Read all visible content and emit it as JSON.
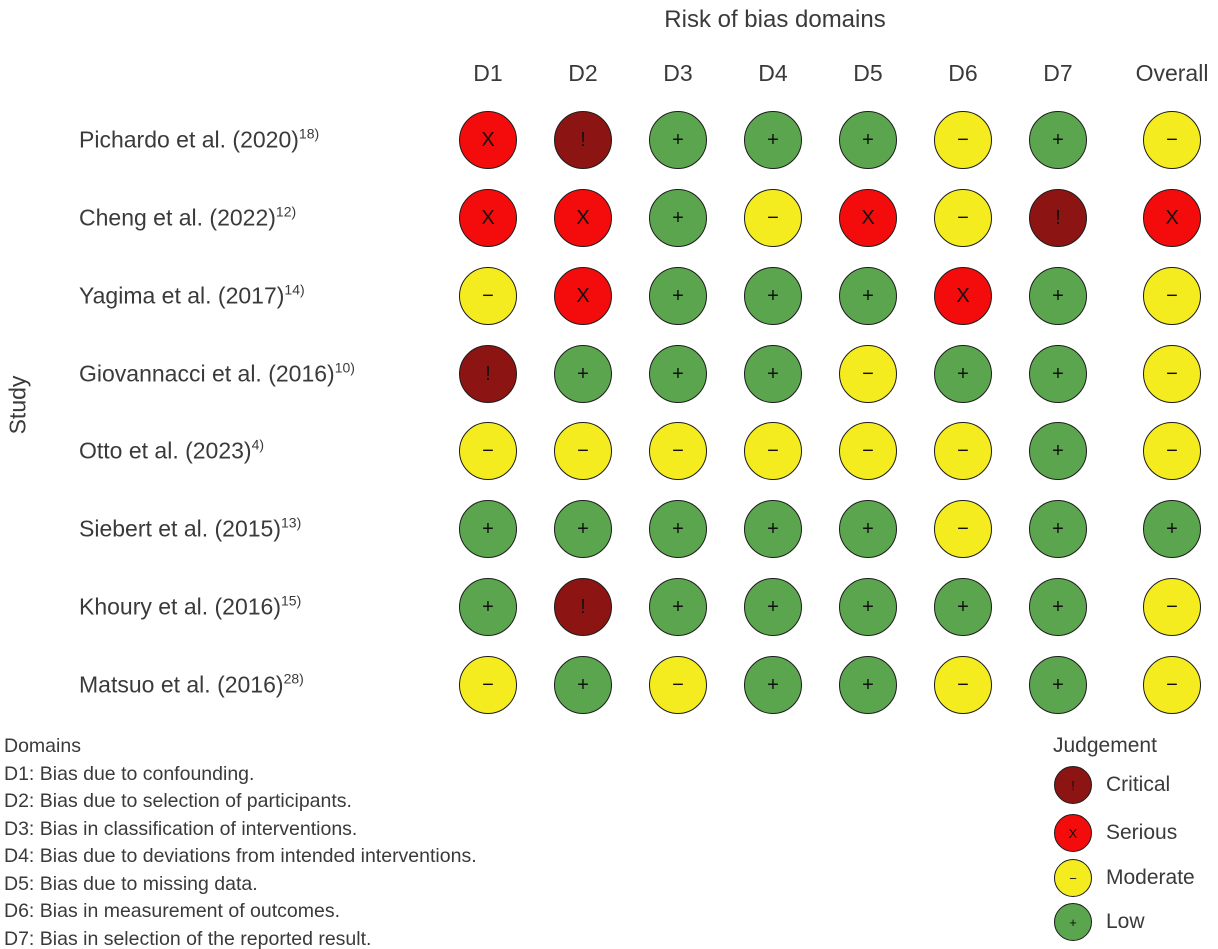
{
  "title": "Risk of bias domains",
  "y_axis_label": "Study",
  "columns": [
    "D1",
    "D2",
    "D3",
    "D4",
    "D5",
    "D6",
    "D7",
    "Overall"
  ],
  "studies": [
    {
      "label": "Pichardo et al. (2020)",
      "ref": "18)",
      "judgements": [
        "serious",
        "critical",
        "low",
        "low",
        "low",
        "moderate",
        "low",
        "moderate"
      ]
    },
    {
      "label": "Cheng et al. (2022)",
      "ref": "12)",
      "judgements": [
        "serious",
        "serious",
        "low",
        "moderate",
        "serious",
        "moderate",
        "critical",
        "serious"
      ]
    },
    {
      "label": "Yagima et al. (2017)",
      "ref": "14)",
      "judgements": [
        "moderate",
        "serious",
        "low",
        "low",
        "low",
        "serious",
        "low",
        "moderate"
      ]
    },
    {
      "label": "Giovannacci et al. (2016)",
      "ref": "10)",
      "judgements": [
        "critical",
        "low",
        "low",
        "low",
        "moderate",
        "low",
        "low",
        "moderate"
      ]
    },
    {
      "label": "Otto et al. (2023)",
      "ref": "4)",
      "judgements": [
        "moderate",
        "moderate",
        "moderate",
        "moderate",
        "moderate",
        "moderate",
        "low",
        "moderate"
      ]
    },
    {
      "label": "Siebert et al. (2015)",
      "ref": "13)",
      "judgements": [
        "low",
        "low",
        "low",
        "low",
        "low",
        "moderate",
        "low",
        "low"
      ]
    },
    {
      "label": "Khoury et al. (2016)",
      "ref": "15)",
      "judgements": [
        "low",
        "critical",
        "low",
        "low",
        "low",
        "low",
        "low",
        "moderate"
      ]
    },
    {
      "label": "Matsuo et al. (2016)",
      "ref": "28)",
      "judgements": [
        "moderate",
        "low",
        "moderate",
        "low",
        "low",
        "moderate",
        "low",
        "moderate"
      ]
    }
  ],
  "judgement_styles": {
    "critical": {
      "label": "Critical",
      "symbol": "!",
      "color": "#8c1412"
    },
    "serious": {
      "label": "Serious",
      "symbol": "X",
      "color": "#f40b0b"
    },
    "moderate": {
      "label": "Moderate",
      "symbol": "−",
      "color": "#f5ec1f"
    },
    "low": {
      "label": "Low",
      "symbol": "+",
      "color": "#5ba54e"
    }
  },
  "domains_legend": {
    "heading": "Domains",
    "items": [
      "D1: Bias due to confounding.",
      "D2: Bias due to selection of participants.",
      "D3: Bias in classification of interventions.",
      "D4: Bias due to deviations from intended interventions.",
      "D5: Bias due to missing data.",
      "D6: Bias in measurement of outcomes.",
      "D7: Bias in selection of the reported result."
    ]
  },
  "judgement_legend": {
    "heading": "Judgement",
    "order": [
      "critical",
      "serious",
      "moderate",
      "low"
    ]
  },
  "chart_data": {
    "type": "heatmap",
    "title": "Risk of bias domains",
    "ylabel": "Study",
    "x_categories": [
      "D1",
      "D2",
      "D3",
      "D4",
      "D5",
      "D6",
      "D7",
      "Overall"
    ],
    "y_categories": [
      "Pichardo et al. (2020)18)",
      "Cheng et al. (2022)12)",
      "Yagima et al. (2017)14)",
      "Giovannacci et al. (2016)10)",
      "Otto et al. (2023)4)",
      "Siebert et al. (2015)13)",
      "Khoury et al. (2016)15)",
      "Matsuo et al. (2016)28)"
    ],
    "values": [
      [
        "Serious",
        "Critical",
        "Low",
        "Low",
        "Low",
        "Moderate",
        "Low",
        "Moderate"
      ],
      [
        "Serious",
        "Serious",
        "Low",
        "Moderate",
        "Serious",
        "Moderate",
        "Critical",
        "Serious"
      ],
      [
        "Moderate",
        "Serious",
        "Low",
        "Low",
        "Low",
        "Serious",
        "Low",
        "Moderate"
      ],
      [
        "Critical",
        "Low",
        "Low",
        "Low",
        "Moderate",
        "Low",
        "Low",
        "Moderate"
      ],
      [
        "Moderate",
        "Moderate",
        "Moderate",
        "Moderate",
        "Moderate",
        "Moderate",
        "Low",
        "Moderate"
      ],
      [
        "Low",
        "Low",
        "Low",
        "Low",
        "Low",
        "Moderate",
        "Low",
        "Low"
      ],
      [
        "Low",
        "Critical",
        "Low",
        "Low",
        "Low",
        "Low",
        "Low",
        "Moderate"
      ],
      [
        "Moderate",
        "Low",
        "Moderate",
        "Low",
        "Low",
        "Moderate",
        "Low",
        "Moderate"
      ]
    ],
    "legend": [
      {
        "label": "Critical",
        "symbol": "!",
        "color": "#8c1412"
      },
      {
        "label": "Serious",
        "symbol": "X",
        "color": "#f40b0b"
      },
      {
        "label": "Moderate",
        "symbol": "−",
        "color": "#f5ec1f"
      },
      {
        "label": "Low",
        "symbol": "+",
        "color": "#5ba54e"
      }
    ],
    "grid": false,
    "legend_position": "bottom-right"
  }
}
